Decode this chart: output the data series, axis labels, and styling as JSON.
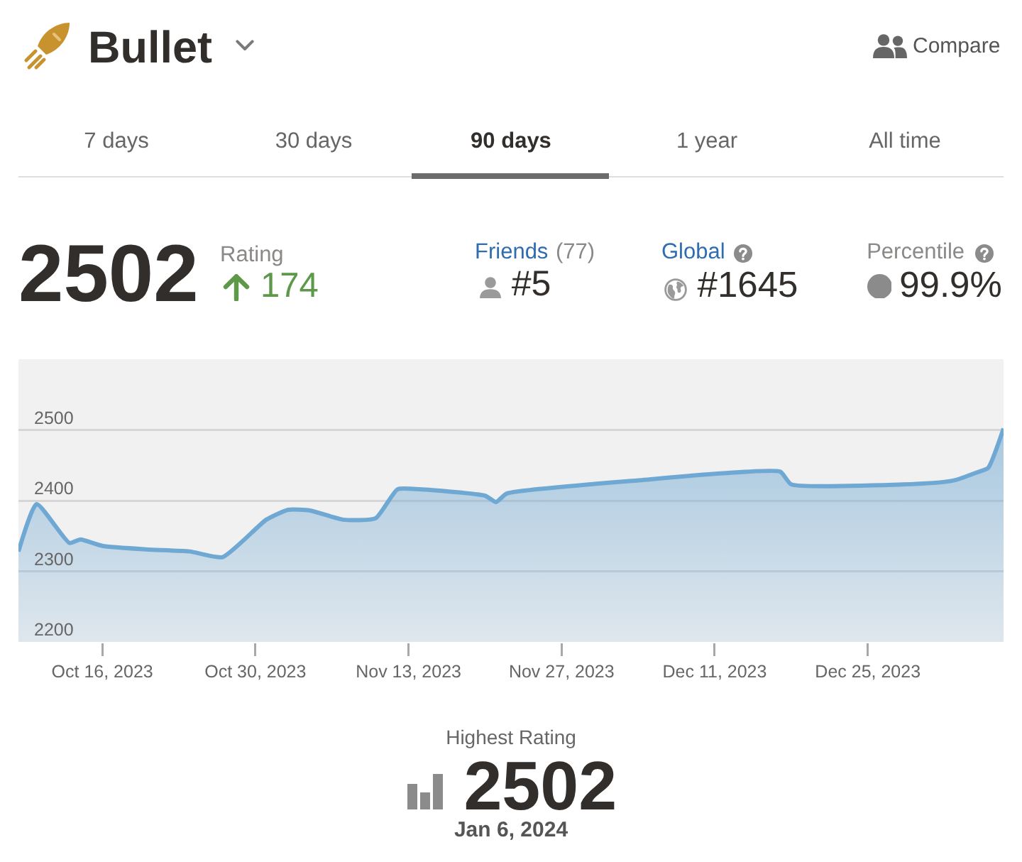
{
  "chart_data": {
    "type": "area",
    "title": "Bullet",
    "x": [
      "2023-10-08T08:00",
      "2023-10-10",
      "2023-10-13",
      "2023-10-14",
      "2023-10-16",
      "2023-10-20",
      "2023-10-24",
      "2023-10-27",
      "2023-10-31",
      "2023-11-02",
      "2023-11-04",
      "2023-11-07",
      "2023-11-10",
      "2023-11-12",
      "2023-11-14",
      "2023-11-20",
      "2023-11-21",
      "2023-11-22",
      "2023-12-05",
      "2023-12-12",
      "2023-12-17",
      "2023-12-18",
      "2023-12-31",
      "2024-01-02",
      "2024-01-04",
      "2024-01-05",
      "2024-01-06T10:00"
    ],
    "series": [
      {
        "color": "#6fa8d3",
        "values": [
          2328,
          2395,
          2340,
          2345,
          2336,
          2331,
          2328,
          2320,
          2373,
          2387,
          2386,
          2373,
          2375,
          2416,
          2416,
          2407,
          2398,
          2410,
          2430,
          2439,
          2441,
          2423,
          2425,
          2429,
          2440,
          2446,
          2502
        ]
      }
    ],
    "xlim": [
      "2023-10-08T08:00",
      "2024-01-06T10:00"
    ],
    "xticks": [
      {
        "value": "2023-10-16",
        "label": "Oct 16, 2023"
      },
      {
        "value": "2023-10-30",
        "label": "Oct 30, 2023"
      },
      {
        "value": "2023-11-13",
        "label": "Nov 13, 2023"
      },
      {
        "value": "2023-11-27",
        "label": "Nov 27, 2023"
      },
      {
        "value": "2023-12-11",
        "label": "Dec 11, 2023"
      },
      {
        "value": "2023-12-25",
        "label": "Dec 25, 2023"
      }
    ],
    "ylim": [
      2200,
      2600
    ],
    "yticks": [
      2200,
      2300,
      2400,
      2500
    ],
    "grid": "y",
    "annotations": [
      "Compare",
      "7 days",
      "30 days",
      "90 days",
      "1 year",
      "All time",
      "2502",
      "Rating",
      "174",
      "Friends",
      "(77)",
      "#5",
      "Global",
      "#1645",
      "Percentile",
      "99.9%",
      "Highest Rating",
      "2502",
      "Jan 6, 2024"
    ]
  }
}
